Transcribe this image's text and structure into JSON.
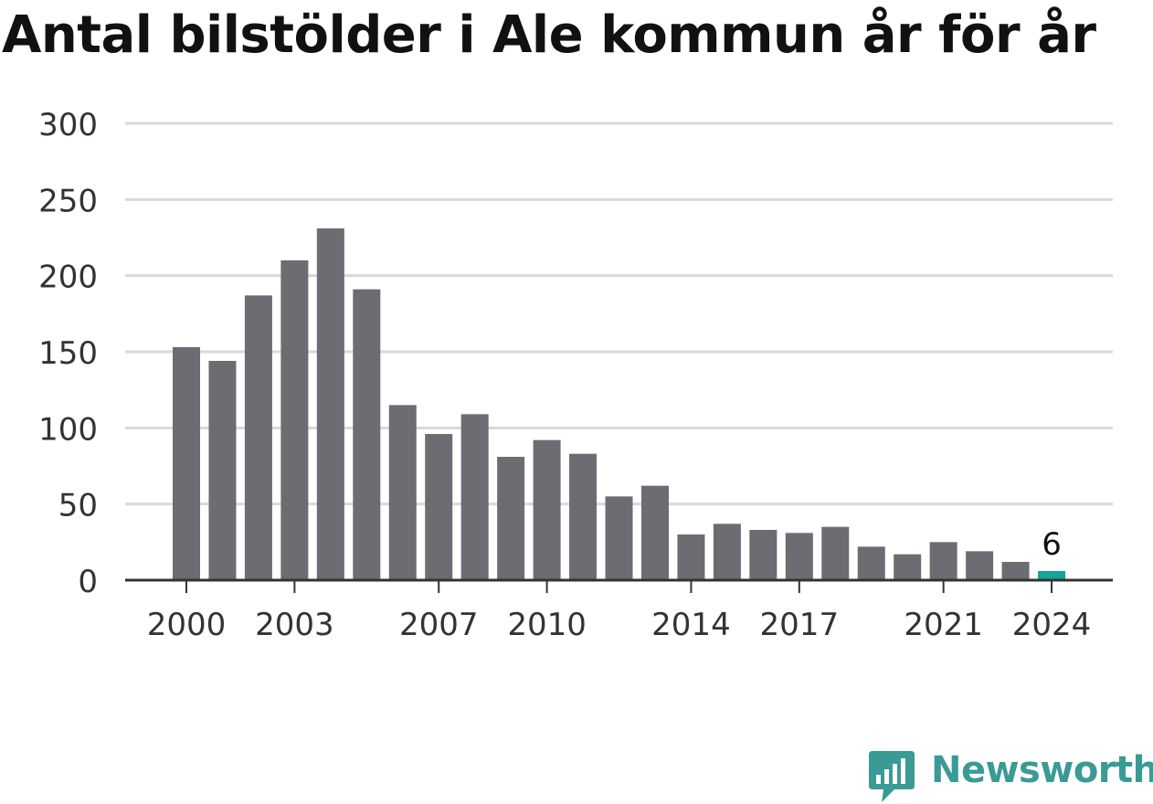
{
  "title": "Antal bilstölder i Ale kommun år för år",
  "brand": {
    "name": "Newsworthy",
    "color": "#3a9a96"
  },
  "colors": {
    "bar": "#6d6c72",
    "highlight": "#16a39a",
    "grid": "#d9d9d9",
    "axis": "#333333",
    "text": "#333333"
  },
  "chart_data": {
    "type": "bar",
    "title": "Antal bilstölder i Ale kommun år för år",
    "categories": [
      "2000",
      "2001",
      "2002",
      "2003",
      "2004",
      "2005",
      "2006",
      "2007",
      "2008",
      "2009",
      "2010",
      "2011",
      "2012",
      "2013",
      "2014",
      "2015",
      "2016",
      "2017",
      "2018",
      "2019",
      "2020",
      "2021",
      "2022",
      "2023",
      "2024"
    ],
    "values": [
      153,
      144,
      187,
      210,
      231,
      191,
      115,
      96,
      109,
      81,
      92,
      83,
      55,
      62,
      30,
      37,
      33,
      31,
      35,
      22,
      17,
      25,
      19,
      12,
      6
    ],
    "x_tick_labels": [
      "2000",
      "2003",
      "2007",
      "2010",
      "2014",
      "2017",
      "2021",
      "2024"
    ],
    "y_ticks": [
      "0",
      "50",
      "100",
      "150",
      "200",
      "250",
      "300"
    ],
    "ylim": [
      0,
      300
    ],
    "highlight_index": 24,
    "data_labels": [
      {
        "category": "2024",
        "text": "6"
      }
    ],
    "grid": true,
    "xlabel": "",
    "ylabel": ""
  }
}
